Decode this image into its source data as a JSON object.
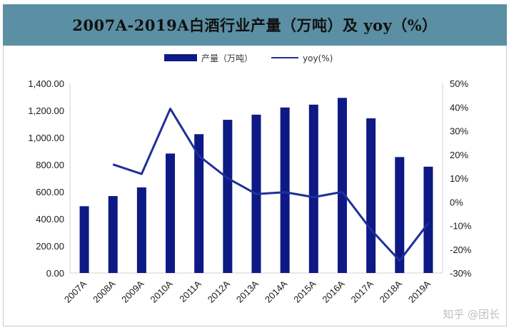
{
  "chart_data": {
    "type": "bar",
    "title": "2007A-2019A白酒行业产量（万吨）及 yoy（%）",
    "categories": [
      "2007A",
      "2008A",
      "2009A",
      "2010A",
      "2011A",
      "2012A",
      "2013A",
      "2014A",
      "2015A",
      "2016A",
      "2017A",
      "2018A",
      "2019A"
    ],
    "series": [
      {
        "name": "产量（万吨）",
        "type": "bar",
        "axis": "left",
        "color": "#0d1a85",
        "values": [
          493,
          568,
          632,
          882,
          1025,
          1131,
          1169,
          1222,
          1243,
          1293,
          1142,
          856,
          785
        ]
      },
      {
        "name": "yoy(%)",
        "type": "line",
        "axis": "right",
        "color": "#1f2f9a",
        "values": [
          null,
          15.8,
          11.8,
          39.3,
          19.4,
          10.0,
          3.3,
          4.1,
          2.0,
          4.2,
          -11.7,
          -24.8,
          -9.0
        ]
      }
    ],
    "y_left": {
      "ylim": [
        0,
        1400
      ],
      "ticks": [
        "0.00",
        "200.00",
        "400.00",
        "600.00",
        "800.00",
        "1,000.00",
        "1,200.00",
        "1,400.00"
      ]
    },
    "y_right": {
      "ylim": [
        -30,
        50
      ],
      "ticks": [
        "-30%",
        "-20%",
        "-10%",
        "0%",
        "10%",
        "20%",
        "30%",
        "40%",
        "50%"
      ]
    },
    "legend_position": "top-center",
    "grid": false
  },
  "watermark": "知乎 @团长"
}
